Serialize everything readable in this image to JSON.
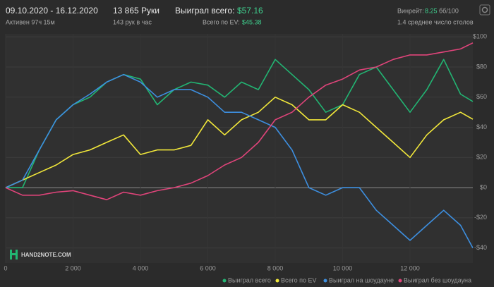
{
  "header": {
    "dates": "09.10.2020 - 16.12.2020",
    "active": "Активен 97ч 15м",
    "hands": "13 865 Руки",
    "hands_per_hour": "143 рук в час",
    "won_label": "Выиграл всего:",
    "won_value": "$57.16",
    "ev_label": "Всего по EV:",
    "ev_value": "$45.38",
    "winrate_label": "Винрейт:",
    "winrate_value": "8.25",
    "winrate_unit": "бб/100",
    "tables": "1.4 среднее число столов",
    "logo": "HAND2NOTE.COM"
  },
  "chart_data": {
    "type": "line",
    "x": [
      0,
      500,
      1000,
      1500,
      2000,
      2500,
      3000,
      3500,
      4000,
      4500,
      5000,
      5500,
      6000,
      6500,
      7000,
      7500,
      8000,
      8500,
      9000,
      9500,
      10000,
      10500,
      11000,
      11500,
      12000,
      12500,
      13000,
      13500,
      13865
    ],
    "series": [
      {
        "name": "Выиграл всего",
        "color": "#22b573",
        "values": [
          0,
          0,
          25,
          45,
          55,
          60,
          70,
          75,
          72,
          55,
          65,
          70,
          68,
          60,
          70,
          65,
          85,
          75,
          65,
          50,
          55,
          75,
          80,
          65,
          50,
          65,
          85,
          62,
          57.16
        ]
      },
      {
        "name": "Всего по EV",
        "color": "#f2e83a",
        "values": [
          0,
          5,
          10,
          15,
          22,
          25,
          30,
          35,
          22,
          25,
          25,
          28,
          45,
          35,
          45,
          50,
          60,
          55,
          45,
          45,
          55,
          50,
          40,
          30,
          20,
          35,
          45,
          50,
          45.38
        ]
      },
      {
        "name": "Выиграл на шоудауне",
        "color": "#3d8fe0",
        "values": [
          0,
          5,
          25,
          45,
          55,
          62,
          70,
          75,
          70,
          60,
          65,
          65,
          60,
          50,
          50,
          45,
          40,
          25,
          0,
          -5,
          0,
          0,
          -15,
          -25,
          -35,
          -25,
          -15,
          -25,
          -40
        ]
      },
      {
        "name": "Выиграл без шоудауна",
        "color": "#e0447a",
        "values": [
          0,
          -5,
          -5,
          -3,
          -2,
          -5,
          -8,
          -3,
          -5,
          -2,
          0,
          3,
          8,
          15,
          20,
          30,
          45,
          50,
          60,
          68,
          72,
          78,
          80,
          85,
          88,
          88,
          90,
          92,
          96
        ]
      }
    ],
    "xlim": [
      0,
      13865
    ],
    "xticks": [
      0,
      {
        "value": 2000,
        "label": "2 000"
      },
      {
        "value": 4000,
        "label": "4 000"
      },
      {
        "value": 6000,
        "label": "6 000"
      },
      {
        "value": 8000,
        "label": "8 000"
      },
      {
        "value": 10000,
        "label": "10 000"
      },
      {
        "value": 12000,
        "label": "12 000"
      }
    ],
    "ylim": [
      -50,
      102
    ],
    "yticks": [
      {
        "value": -40,
        "label": "-$40"
      },
      {
        "value": -20,
        "label": "-$20"
      },
      {
        "value": 0,
        "label": "$0"
      },
      {
        "value": 20,
        "label": "$20"
      },
      {
        "value": 40,
        "label": "$40"
      },
      {
        "value": 60,
        "label": "$60"
      },
      {
        "value": 80,
        "label": "$80"
      },
      {
        "value": 100,
        "label": "$100"
      }
    ],
    "grid": true
  }
}
